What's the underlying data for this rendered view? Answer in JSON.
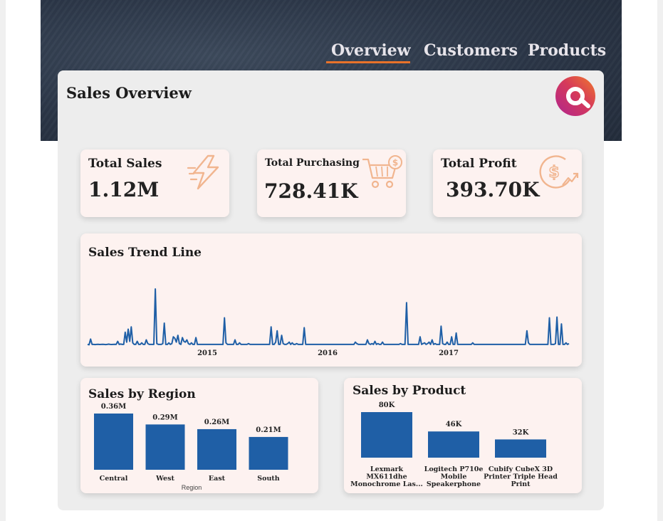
{
  "nav": {
    "tabs": [
      {
        "label": "Overview",
        "active": true
      },
      {
        "label": "Customers",
        "active": false
      },
      {
        "label": "Products",
        "active": false
      }
    ],
    "accent": "#9b3df0",
    "underline_color": "#e8722a"
  },
  "page_title": "Sales Overview",
  "logo_icon": "brand-logo-icon",
  "kpis": [
    {
      "title": "Total Sales",
      "value": "1.12M",
      "icon": "lightning-icon"
    },
    {
      "title": "Total Purchasing",
      "value": "728.41K",
      "icon": "shopping-cart-dollar-icon"
    },
    {
      "title": "Total Profit",
      "value": "393.70K",
      "icon": "dollar-growth-icon"
    }
  ],
  "chart_data": [
    {
      "type": "line",
      "title": "Sales Trend Line",
      "x_ticks": [
        "2015",
        "2016",
        "2017"
      ],
      "color": "#1f5fa6",
      "series": [
        {
          "values": [
            2,
            1.5,
            9,
            2,
            2,
            1.8,
            2,
            2.2,
            1.9,
            2,
            2.1,
            2,
            1.8,
            2,
            2.3,
            2,
            1.9,
            2,
            2.1,
            2,
            6,
            2,
            2.4,
            2,
            2,
            18,
            5,
            22,
            6,
            25,
            4,
            2,
            2,
            6,
            2,
            2,
            4,
            2,
            2,
            8,
            3,
            2,
            2,
            2,
            2,
            75,
            3,
            2,
            2,
            2,
            3,
            30,
            2,
            2,
            4,
            2,
            3,
            12,
            10,
            5,
            14,
            3,
            2,
            11,
            6,
            5,
            8,
            3,
            2,
            4,
            2,
            2,
            11,
            2,
            2,
            2,
            2,
            2,
            2,
            2,
            2,
            2,
            2,
            2,
            2,
            2,
            2,
            2,
            2,
            2,
            2,
            37,
            4,
            2,
            2,
            2,
            2,
            2,
            8,
            2,
            2,
            4,
            2,
            2,
            2,
            2,
            2,
            3,
            2,
            2,
            2,
            2,
            2,
            2,
            2,
            2,
            2,
            2,
            2,
            2,
            2,
            2,
            25,
            2,
            2,
            5,
            20,
            2,
            2,
            14,
            3,
            2,
            2,
            3,
            5,
            2,
            4,
            2,
            2,
            3,
            2,
            2,
            2,
            2,
            24,
            2,
            2,
            2,
            2,
            2,
            2,
            2,
            2,
            2,
            2,
            2,
            2,
            2,
            2,
            2,
            2,
            2,
            2,
            2,
            2,
            2,
            2,
            2,
            2,
            2,
            2,
            2,
            2,
            2,
            2,
            2,
            2,
            2,
            5,
            3,
            2,
            2,
            2,
            2,
            2,
            2,
            8,
            3,
            2,
            3,
            2,
            6,
            2,
            3,
            2,
            2,
            5,
            2,
            2,
            2,
            2,
            2,
            2,
            2,
            2,
            2,
            2,
            2,
            3,
            2,
            2,
            2,
            57,
            2,
            2,
            2,
            2,
            2,
            2,
            2,
            2,
            12,
            2,
            3,
            4,
            2,
            3,
            5,
            2,
            8,
            2,
            3,
            2,
            2,
            2,
            26,
            3,
            2,
            2,
            5,
            2,
            2,
            12,
            2,
            2,
            17,
            2,
            2,
            2,
            2,
            2,
            2,
            2,
            2,
            2,
            2,
            4,
            2,
            2,
            2,
            2,
            2,
            2,
            2,
            2,
            2,
            2,
            2,
            2,
            2,
            2,
            2,
            2,
            2,
            2,
            2,
            2,
            2,
            2,
            2,
            2,
            2,
            2,
            2,
            2,
            2,
            2,
            2,
            2,
            2,
            2,
            2,
            20,
            4,
            2,
            2,
            2,
            2,
            2,
            2,
            2,
            2,
            2,
            2,
            2,
            2,
            2,
            37,
            2,
            2,
            2,
            3,
            38,
            2,
            2,
            29,
            2,
            2,
            4,
            2,
            3
          ]
        }
      ]
    },
    {
      "type": "bar",
      "title": "Sales by Region",
      "xlabel": "Region",
      "categories": [
        "Central",
        "West",
        "East",
        "South"
      ],
      "values": [
        0.36,
        0.29,
        0.26,
        0.21
      ],
      "data_labels": [
        "0.36M",
        "0.29M",
        "0.26M",
        "0.21M"
      ],
      "ylim": [
        0,
        0.36
      ],
      "color": "#1f5fa6"
    },
    {
      "type": "bar",
      "title": "Sales by Product",
      "categories": [
        [
          "Lexmark",
          "MX611dhe",
          "Monochrome Las..."
        ],
        [
          "Logitech P710e",
          "Mobile",
          "Speakerphone"
        ],
        [
          "Cubify CubeX 3D",
          "Printer Triple Head",
          "Print"
        ]
      ],
      "values": [
        80,
        46,
        32
      ],
      "data_labels": [
        "80K",
        "46K",
        "32K"
      ],
      "ylim": [
        0,
        80
      ],
      "color": "#1f5fa6"
    }
  ]
}
